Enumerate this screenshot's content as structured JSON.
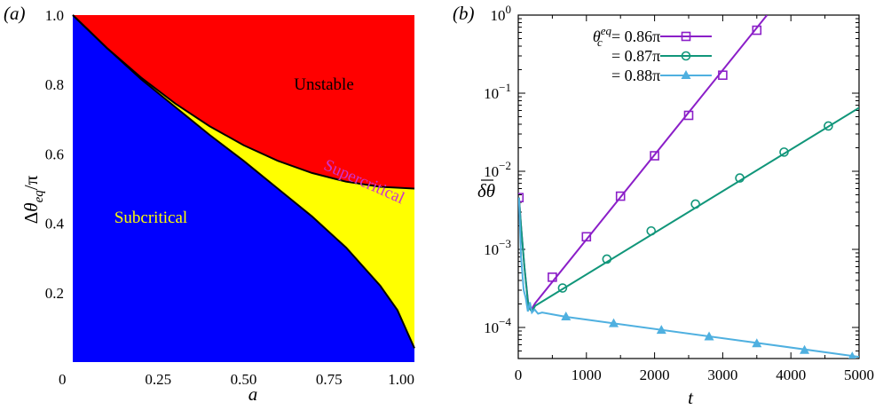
{
  "colors": {
    "stable": "#0000ff",
    "unstable": "#ff0000",
    "supercritical": "#ffff00",
    "subcritical_label": "#ffff00",
    "supercritical_label": "#cc33cc",
    "series_1": "#8b1fc8",
    "series_2": "#11967a",
    "series_3": "#4fb0e0"
  },
  "chart_data": [
    {
      "type": "area",
      "panel_label": "(a)",
      "xlabel": "a",
      "ylabel_parts": {
        "delta": "Δ",
        "theta": "θ",
        "sub": "eq",
        "rest": "/π"
      },
      "xlim": [
        0,
        1
      ],
      "ylim": [
        0,
        1
      ],
      "xticks": [
        {
          "v": 0,
          "label": "0"
        },
        {
          "v": 0.25,
          "label": "0.25"
        },
        {
          "v": 0.5,
          "label": "0.50"
        },
        {
          "v": 0.75,
          "label": "0.75"
        },
        {
          "v": 1,
          "label": "1.00"
        }
      ],
      "yticks": [
        {
          "v": 0.2,
          "label": "0.2"
        },
        {
          "v": 0.4,
          "label": "0.4"
        },
        {
          "v": 0.6,
          "label": "0.6"
        },
        {
          "v": 0.8,
          "label": "0.8"
        },
        {
          "v": 1,
          "label": "1.0"
        }
      ],
      "regions": {
        "unstable": "Unstable",
        "supercritical": "Supercritical",
        "subcritical": "Subcritical"
      },
      "boundaries": {
        "upper": [
          [
            0,
            1
          ],
          [
            0.1,
            0.905
          ],
          [
            0.2,
            0.82
          ],
          [
            0.3,
            0.745
          ],
          [
            0.4,
            0.68
          ],
          [
            0.5,
            0.625
          ],
          [
            0.6,
            0.58
          ],
          [
            0.7,
            0.545
          ],
          [
            0.8,
            0.52
          ],
          [
            0.9,
            0.505
          ],
          [
            1,
            0.5
          ]
        ],
        "lower": [
          [
            0,
            1
          ],
          [
            0.1,
            0.905
          ],
          [
            0.2,
            0.815
          ],
          [
            0.3,
            0.735
          ],
          [
            0.4,
            0.655
          ],
          [
            0.5,
            0.58
          ],
          [
            0.6,
            0.5
          ],
          [
            0.7,
            0.42
          ],
          [
            0.8,
            0.33
          ],
          [
            0.9,
            0.22
          ],
          [
            0.95,
            0.15
          ],
          [
            1,
            0.04
          ]
        ]
      }
    },
    {
      "type": "line",
      "panel_label": "(b)",
      "xlabel": "t",
      "ylabel": "δθ",
      "xlim": [
        0,
        5000
      ],
      "ylim": [
        4e-05,
        1
      ],
      "yscale": "log",
      "xticks": [
        {
          "v": 0,
          "label": "0"
        },
        {
          "v": 1000,
          "label": "1000"
        },
        {
          "v": 2000,
          "label": "2000"
        },
        {
          "v": 3000,
          "label": "3000"
        },
        {
          "v": 4000,
          "label": "4000"
        },
        {
          "v": 5000,
          "label": "5000"
        }
      ],
      "yticks": [
        {
          "v": 0.0001,
          "base": "10",
          "exp": "−4"
        },
        {
          "v": 0.001,
          "base": "10",
          "exp": "−3"
        },
        {
          "v": 0.01,
          "base": "10",
          "exp": "−2"
        },
        {
          "v": 0.1,
          "base": "10",
          "exp": "−1"
        },
        {
          "v": 1,
          "base": "10",
          "exp": "0"
        }
      ],
      "legend_position": "top-left",
      "legend_prefix": {
        "theta": "θ",
        "sup": "eq",
        "sub": "c"
      },
      "series": [
        {
          "name": "= 0.86π",
          "marker": "square",
          "color_key": "series_1",
          "line": [
            [
              10,
              0.0046
            ],
            [
              40,
              0.002
            ],
            [
              90,
              0.0006
            ],
            [
              150,
              0.00019
            ],
            [
              200,
              0.000175
            ],
            [
              250,
              0.000205
            ],
            [
              3650,
              1
            ]
          ],
          "markers": [
            [
              10,
              0.0046
            ],
            [
              500,
              0.00044
            ],
            [
              1000,
              0.00145
            ],
            [
              1500,
              0.0048
            ],
            [
              2000,
              0.0158
            ],
            [
              2500,
              0.052
            ],
            [
              3000,
              0.17
            ],
            [
              3500,
              0.64
            ]
          ]
        },
        {
          "name": "= 0.87π",
          "marker": "circle",
          "color_key": "series_2",
          "line": [
            [
              10,
              0.0046
            ],
            [
              40,
              0.002
            ],
            [
              90,
              0.0006
            ],
            [
              150,
              0.00018
            ],
            [
              200,
              0.00016
            ],
            [
              250,
              0.00019
            ],
            [
              5000,
              0.065
            ]
          ],
          "markers": [
            [
              650,
              0.00032
            ],
            [
              1300,
              0.00075
            ],
            [
              1950,
              0.00172
            ],
            [
              2600,
              0.0038
            ],
            [
              3250,
              0.0082
            ],
            [
              3900,
              0.0176
            ],
            [
              4550,
              0.038
            ]
          ]
        },
        {
          "name": "= 0.88π",
          "marker": "triangle",
          "color_key": "series_3",
          "line": [
            [
              10,
              0.0046
            ],
            [
              40,
              0.0008
            ],
            [
              80,
              0.0003
            ],
            [
              110,
              0.00024
            ],
            [
              140,
              0.00016
            ],
            [
              170,
              0.00021
            ],
            [
              200,
              0.000155
            ],
            [
              240,
              0.00017
            ],
            [
              290,
              0.00015
            ],
            [
              350,
              0.000155
            ],
            [
              700,
              0.000137
            ],
            [
              5000,
              4.2e-05
            ]
          ],
          "markers": [
            [
              700,
              0.000137
            ],
            [
              1400,
              0.000112
            ],
            [
              2100,
              9.2e-05
            ],
            [
              2800,
              7.6e-05
            ],
            [
              3500,
              6.2e-05
            ],
            [
              4200,
              5.1e-05
            ],
            [
              4900,
              4.2e-05
            ]
          ]
        }
      ]
    }
  ]
}
